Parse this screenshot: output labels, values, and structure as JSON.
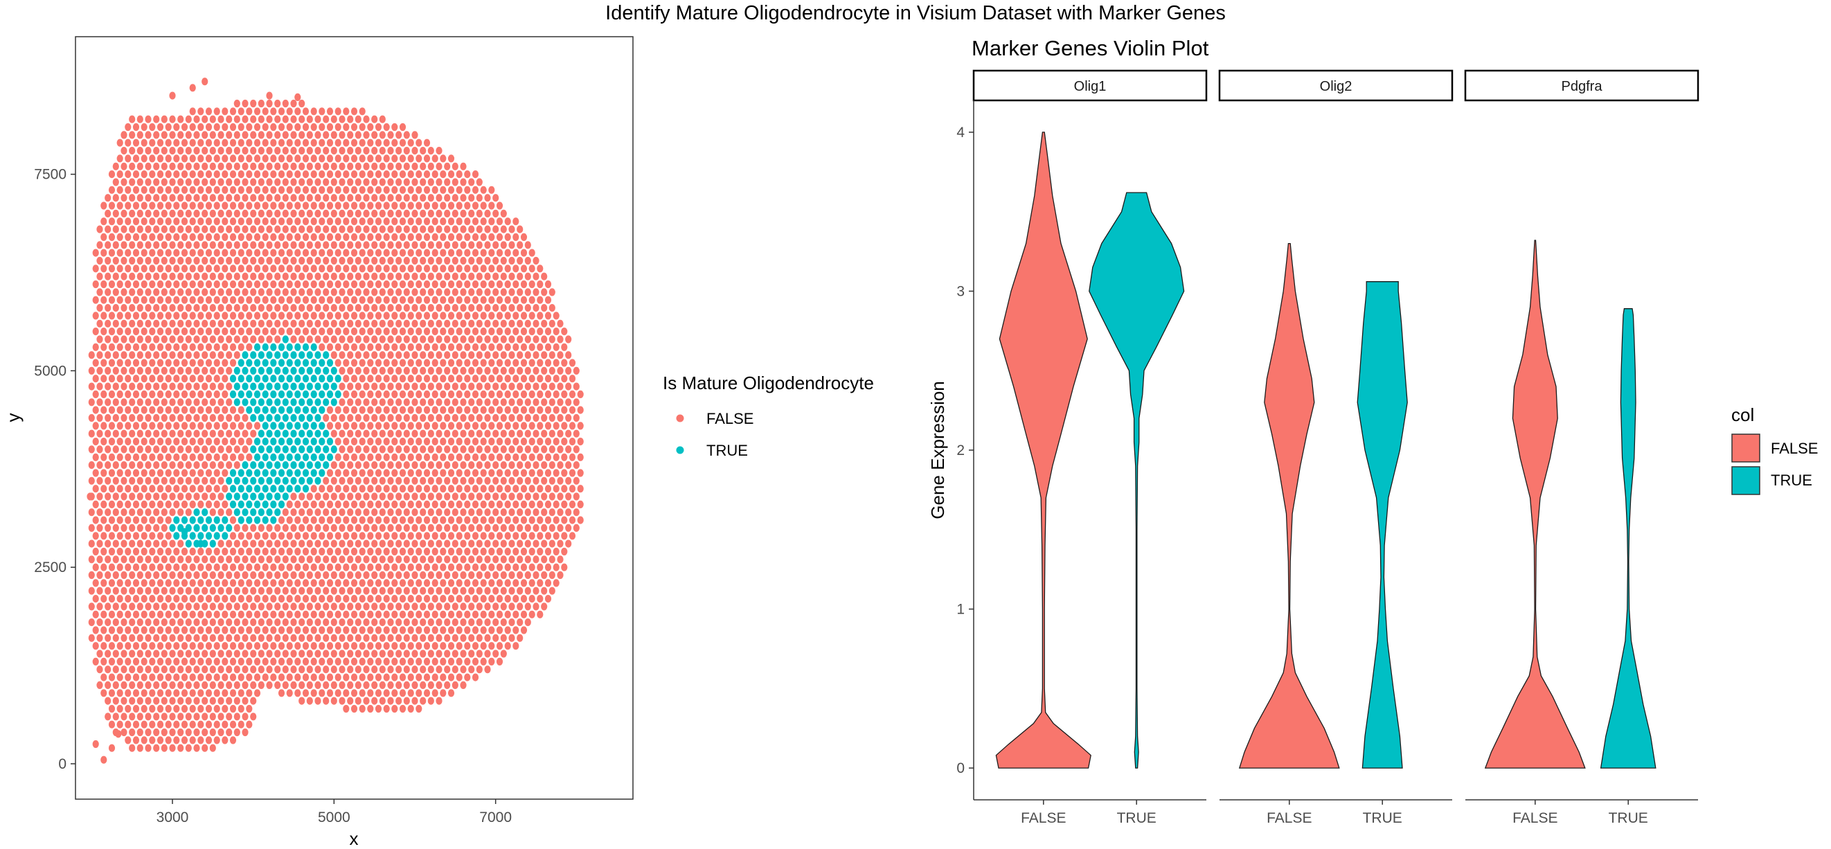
{
  "figure": {
    "title": "Identify Mature Oligodendrocyte in Visium Dataset with Marker Genes"
  },
  "colors": {
    "false": "#F8766D",
    "true": "#00BFC4",
    "axis": "#333333",
    "tick_text": "#4d4d4d",
    "panel_border": "#333333",
    "violin_stroke": "#1a1a1a"
  },
  "chart_data": [
    {
      "type": "scatter",
      "xlabel": "x",
      "ylabel": "y",
      "xlim": [
        1800,
        8700
      ],
      "ylim": [
        -450,
        9250
      ],
      "x_ticks": [
        3000,
        5000,
        7000
      ],
      "y_ticks": [
        0,
        2500,
        5000,
        7500
      ],
      "x_tick_labels": [
        "3000",
        "5000",
        "7000"
      ],
      "y_tick_labels": [
        "0",
        "2500",
        "5000",
        "7500"
      ],
      "grid": false,
      "legend": {
        "title": "Is Mature Oligodendrocyte",
        "position": "right",
        "entries": [
          "FALSE",
          "TRUE"
        ]
      },
      "series": [
        {
          "name": "FALSE",
          "color": "#F8766D",
          "description": "hexagonal grid of Visium spots filling the tissue section"
        },
        {
          "name": "TRUE",
          "color": "#00BFC4",
          "clusters": [
            [
              4400,
              4850,
              700,
              550
            ],
            [
              4500,
              4000,
              520,
              560
            ],
            [
              4050,
              3450,
              380,
              420
            ],
            [
              3350,
              2980,
              380,
              230
            ]
          ]
        }
      ]
    },
    {
      "type": "violin",
      "title": "Marker Genes Violin Plot",
      "ylabel": "Gene Expression",
      "ylim": [
        -0.2,
        4.2
      ],
      "y_ticks": [
        0,
        1,
        2,
        3,
        4
      ],
      "y_tick_labels": [
        "0",
        "1",
        "2",
        "3",
        "4"
      ],
      "categories": [
        "FALSE",
        "TRUE"
      ],
      "facets": [
        "Olig1",
        "Olig2",
        "Pdgfra"
      ],
      "legend": {
        "title": "col",
        "position": "right",
        "entries": [
          "FALSE",
          "TRUE"
        ]
      },
      "violins": [
        {
          "facet": "Olig1",
          "group": "FALSE",
          "min": 0,
          "max": 4.0,
          "profile": [
            [
              0,
              0.9
            ],
            [
              0.08,
              0.95
            ],
            [
              0.15,
              0.7
            ],
            [
              0.28,
              0.2
            ],
            [
              0.35,
              0.04
            ],
            [
              0.5,
              0.02
            ],
            [
              1.0,
              0.02
            ],
            [
              1.4,
              0.03
            ],
            [
              1.7,
              0.05
            ],
            [
              1.9,
              0.18
            ],
            [
              2.1,
              0.35
            ],
            [
              2.4,
              0.6
            ],
            [
              2.7,
              0.88
            ],
            [
              3.0,
              0.65
            ],
            [
              3.3,
              0.35
            ],
            [
              3.6,
              0.18
            ],
            [
              3.85,
              0.08
            ],
            [
              4.0,
              0.02
            ]
          ]
        },
        {
          "facet": "Olig1",
          "group": "TRUE",
          "min": 0,
          "max": 3.62,
          "profile": [
            [
              0,
              0.02
            ],
            [
              0.1,
              0.04
            ],
            [
              0.2,
              0.02
            ],
            [
              0.5,
              0.01
            ],
            [
              1.0,
              0.01
            ],
            [
              1.5,
              0.01
            ],
            [
              1.9,
              0.02
            ],
            [
              2.05,
              0.05
            ],
            [
              2.2,
              0.05
            ],
            [
              2.35,
              0.12
            ],
            [
              2.5,
              0.15
            ],
            [
              2.65,
              0.4
            ],
            [
              2.85,
              0.72
            ],
            [
              3.0,
              0.95
            ],
            [
              3.15,
              0.88
            ],
            [
              3.3,
              0.7
            ],
            [
              3.5,
              0.3
            ],
            [
              3.62,
              0.2
            ]
          ]
        },
        {
          "facet": "Olig2",
          "group": "FALSE",
          "min": 0,
          "max": 3.3,
          "profile": [
            [
              0,
              1.0
            ],
            [
              0.1,
              0.9
            ],
            [
              0.25,
              0.7
            ],
            [
              0.45,
              0.35
            ],
            [
              0.6,
              0.12
            ],
            [
              0.72,
              0.05
            ],
            [
              1.0,
              0.01
            ],
            [
              1.3,
              0.02
            ],
            [
              1.6,
              0.06
            ],
            [
              1.9,
              0.22
            ],
            [
              2.1,
              0.35
            ],
            [
              2.3,
              0.5
            ],
            [
              2.45,
              0.45
            ],
            [
              2.7,
              0.28
            ],
            [
              3.0,
              0.12
            ],
            [
              3.2,
              0.05
            ],
            [
              3.3,
              0.02
            ]
          ]
        },
        {
          "facet": "Olig2",
          "group": "TRUE",
          "min": 0,
          "max": 3.06,
          "profile": [
            [
              0,
              0.4
            ],
            [
              0.2,
              0.35
            ],
            [
              0.5,
              0.22
            ],
            [
              0.8,
              0.1
            ],
            [
              1.0,
              0.06
            ],
            [
              1.2,
              0.03
            ],
            [
              1.4,
              0.04
            ],
            [
              1.7,
              0.12
            ],
            [
              2.0,
              0.35
            ],
            [
              2.3,
              0.5
            ],
            [
              2.5,
              0.45
            ],
            [
              2.8,
              0.38
            ],
            [
              3.0,
              0.32
            ],
            [
              3.06,
              0.32
            ]
          ]
        },
        {
          "facet": "Pdgfra",
          "group": "FALSE",
          "min": 0,
          "max": 3.32,
          "profile": [
            [
              0,
              1.0
            ],
            [
              0.1,
              0.88
            ],
            [
              0.25,
              0.65
            ],
            [
              0.45,
              0.35
            ],
            [
              0.58,
              0.12
            ],
            [
              0.7,
              0.04
            ],
            [
              1.0,
              0.01
            ],
            [
              1.4,
              0.02
            ],
            [
              1.7,
              0.1
            ],
            [
              1.95,
              0.3
            ],
            [
              2.2,
              0.45
            ],
            [
              2.4,
              0.42
            ],
            [
              2.6,
              0.25
            ],
            [
              2.9,
              0.1
            ],
            [
              3.1,
              0.05
            ],
            [
              3.32,
              0.01
            ]
          ]
        },
        {
          "facet": "Pdgfra",
          "group": "TRUE",
          "min": 0,
          "max": 2.89,
          "profile": [
            [
              0,
              0.55
            ],
            [
              0.2,
              0.45
            ],
            [
              0.4,
              0.3
            ],
            [
              0.6,
              0.18
            ],
            [
              0.8,
              0.06
            ],
            [
              1.0,
              0.02
            ],
            [
              1.3,
              0.01
            ],
            [
              1.5,
              0.02
            ],
            [
              1.7,
              0.05
            ],
            [
              1.95,
              0.12
            ],
            [
              2.3,
              0.15
            ],
            [
              2.5,
              0.14
            ],
            [
              2.7,
              0.12
            ],
            [
              2.85,
              0.1
            ],
            [
              2.89,
              0.08
            ]
          ]
        }
      ]
    }
  ]
}
